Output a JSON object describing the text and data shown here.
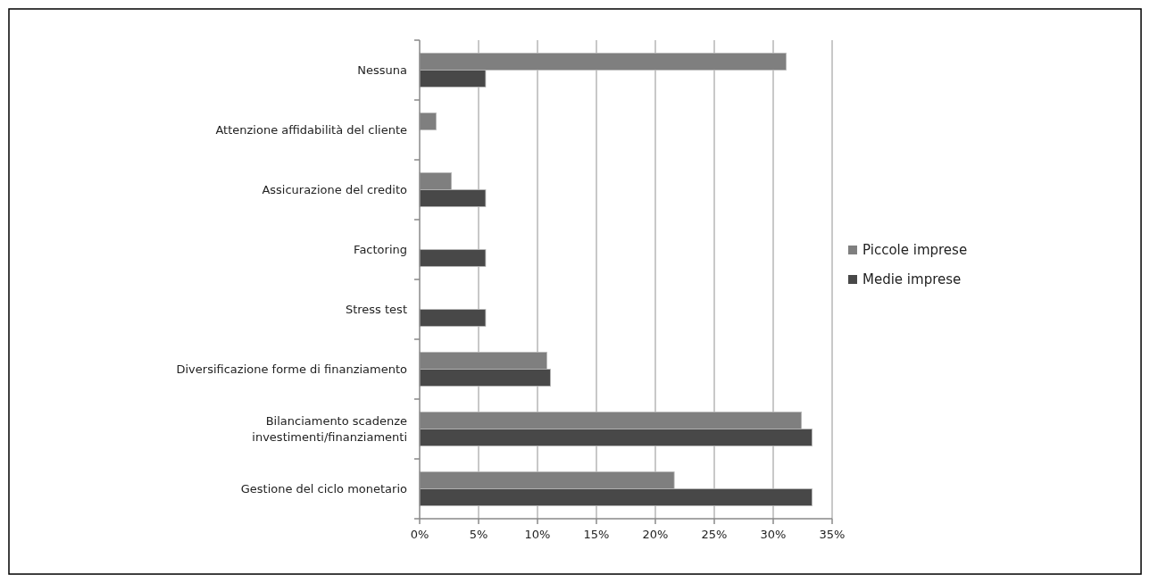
{
  "chart_data": {
    "type": "bar",
    "orientation": "horizontal",
    "categories": [
      "Nessuna",
      "Attenzione affidabilità del cliente",
      "Assicurazione del credito",
      "Factoring",
      "Stress test",
      "Diversificazione forme di finanziamento",
      "Bilanciamento scadenze investimenti/finanziamenti",
      "Gestione del ciclo monetario"
    ],
    "series": [
      {
        "name": "Piccole imprese",
        "color": "#7f7f7f",
        "values": [
          31.1,
          1.4,
          2.7,
          0,
          0,
          10.8,
          32.4,
          21.6
        ]
      },
      {
        "name": "Medie imprese",
        "color": "#484848",
        "values": [
          5.6,
          0,
          5.6,
          5.6,
          5.6,
          11.1,
          33.3,
          33.3
        ]
      }
    ],
    "xlim": [
      0,
      35
    ],
    "xticks": [
      {
        "value": 0,
        "label": "0%"
      },
      {
        "value": 5,
        "label": "5%"
      },
      {
        "value": 10,
        "label": "10%"
      },
      {
        "value": 15,
        "label": "15%"
      },
      {
        "value": 20,
        "label": "20%"
      },
      {
        "value": 25,
        "label": "25%"
      },
      {
        "value": 30,
        "label": "30%"
      },
      {
        "value": 35,
        "label": "35%"
      }
    ],
    "grid": "x",
    "legend": "right"
  }
}
